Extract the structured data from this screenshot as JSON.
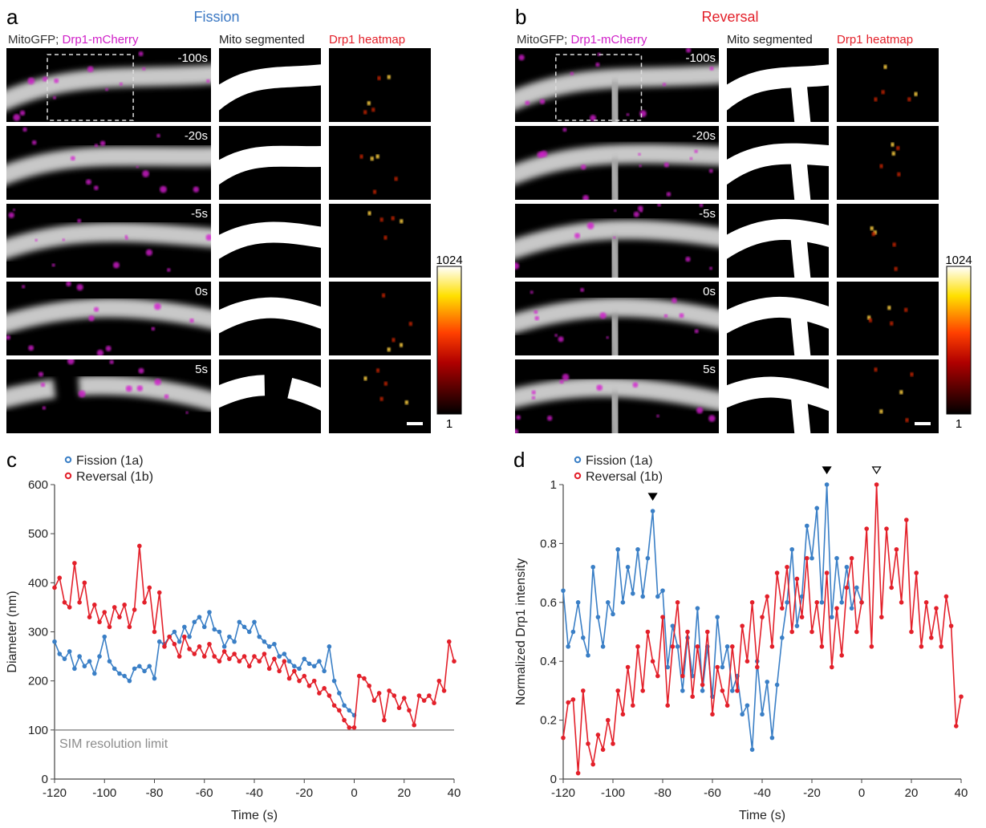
{
  "panel_a": {
    "letter": "a",
    "title": "Fission",
    "header_mito": "MitoGFP;",
    "header_drp1": "Drp1-mCherry",
    "header_segmented": "Mito segmented",
    "header_heatmap": "Drp1 heatmap",
    "timepoints": [
      "-100s",
      "-20s",
      "-5s",
      "0s",
      "5s"
    ],
    "colorbar_max": "1024",
    "colorbar_min": "1"
  },
  "panel_b": {
    "letter": "b",
    "title": "Reversal",
    "header_mito": "MitoGFP;",
    "header_drp1": "Drp1-mCherry",
    "header_segmented": "Mito segmented",
    "header_heatmap": "Drp1 heatmap",
    "timepoints": [
      "-100s",
      "-20s",
      "-5s",
      "0s",
      "5s"
    ],
    "colorbar_max": "1024",
    "colorbar_min": "1"
  },
  "chart_data": [
    {
      "type": "line",
      "panel_label": "c",
      "x_label": "Time (s)",
      "y_label": "Diameter (nm)",
      "xlim": [
        -120,
        40
      ],
      "xticks": [
        -120,
        -100,
        -80,
        -60,
        -40,
        -20,
        0,
        20,
        40
      ],
      "ylim": [
        0,
        600
      ],
      "yticks": [
        0,
        100,
        200,
        300,
        400,
        500,
        600
      ],
      "reference_line": {
        "value": 100,
        "label": "SIM resolution limit",
        "color": "#8c8c8c"
      },
      "series": [
        {
          "name": "Fission (1a)",
          "color": "#3a7fc6",
          "x": [
            -120,
            -118,
            -116,
            -114,
            -112,
            -110,
            -108,
            -106,
            -104,
            -102,
            -100,
            -98,
            -96,
            -94,
            -92,
            -90,
            -88,
            -86,
            -84,
            -82,
            -80,
            -78,
            -76,
            -74,
            -72,
            -70,
            -68,
            -66,
            -64,
            -62,
            -60,
            -58,
            -56,
            -54,
            -52,
            -50,
            -48,
            -46,
            -44,
            -42,
            -40,
            -38,
            -36,
            -34,
            -32,
            -30,
            -28,
            -26,
            -24,
            -22,
            -20,
            -18,
            -16,
            -14,
            -12,
            -10,
            -8,
            -6,
            -4,
            -2,
            0
          ],
          "values": [
            280,
            255,
            245,
            260,
            225,
            250,
            230,
            240,
            215,
            250,
            290,
            240,
            225,
            215,
            210,
            200,
            225,
            230,
            220,
            230,
            205,
            280,
            275,
            290,
            300,
            280,
            310,
            290,
            320,
            330,
            310,
            340,
            305,
            300,
            270,
            290,
            280,
            320,
            310,
            300,
            320,
            290,
            280,
            270,
            275,
            250,
            255,
            240,
            230,
            225,
            245,
            235,
            230,
            240,
            220,
            270,
            200,
            175,
            150,
            140,
            130
          ]
        },
        {
          "name": "Reversal (1b)",
          "color": "#e3202a",
          "x": [
            -120,
            -118,
            -116,
            -114,
            -112,
            -110,
            -108,
            -106,
            -104,
            -102,
            -100,
            -98,
            -96,
            -94,
            -92,
            -90,
            -88,
            -86,
            -84,
            -82,
            -80,
            -78,
            -76,
            -74,
            -72,
            -70,
            -68,
            -66,
            -64,
            -62,
            -60,
            -58,
            -56,
            -54,
            -52,
            -50,
            -48,
            -46,
            -44,
            -42,
            -40,
            -38,
            -36,
            -34,
            -32,
            -30,
            -28,
            -26,
            -24,
            -22,
            -20,
            -18,
            -16,
            -14,
            -12,
            -10,
            -8,
            -6,
            -4,
            -2,
            0,
            2,
            4,
            6,
            8,
            10,
            12,
            14,
            16,
            18,
            20,
            22,
            24,
            26,
            28,
            30,
            32,
            34,
            36,
            38,
            40
          ],
          "values": [
            390,
            410,
            360,
            350,
            440,
            360,
            400,
            330,
            355,
            320,
            340,
            310,
            350,
            330,
            355,
            310,
            345,
            475,
            360,
            390,
            300,
            380,
            270,
            290,
            275,
            250,
            290,
            265,
            255,
            270,
            250,
            275,
            250,
            240,
            260,
            245,
            255,
            240,
            250,
            230,
            250,
            240,
            255,
            225,
            245,
            220,
            240,
            205,
            220,
            200,
            210,
            190,
            200,
            175,
            185,
            170,
            150,
            140,
            120,
            105,
            105,
            210,
            205,
            190,
            160,
            175,
            120,
            180,
            170,
            145,
            165,
            140,
            110,
            170,
            160,
            170,
            155,
            200,
            180,
            280,
            240
          ]
        }
      ]
    },
    {
      "type": "line",
      "panel_label": "d",
      "x_label": "Time (s)",
      "y_label": "Normalized Drp1 intensity",
      "xlim": [
        -120,
        40
      ],
      "xticks": [
        -120,
        -100,
        -80,
        -60,
        -40,
        -20,
        0,
        20,
        40
      ],
      "ylim": [
        0,
        1
      ],
      "yticks": [
        0,
        0.2,
        0.4,
        0.6,
        0.8,
        1
      ],
      "markers": [
        {
          "series": 0,
          "index": 18,
          "filled": true
        },
        {
          "series": 0,
          "index": 53,
          "filled": true
        },
        {
          "series": 1,
          "index": 63,
          "filled": false
        }
      ],
      "series": [
        {
          "name": "Fission (1a)",
          "color": "#3a7fc6",
          "x": [
            -120,
            -118,
            -116,
            -114,
            -112,
            -110,
            -108,
            -106,
            -104,
            -102,
            -100,
            -98,
            -96,
            -94,
            -92,
            -90,
            -88,
            -86,
            -84,
            -82,
            -80,
            -78,
            -76,
            -74,
            -72,
            -70,
            -68,
            -66,
            -64,
            -62,
            -60,
            -58,
            -56,
            -54,
            -52,
            -50,
            -48,
            -46,
            -44,
            -42,
            -40,
            -38,
            -36,
            -34,
            -32,
            -30,
            -28,
            -26,
            -24,
            -22,
            -20,
            -18,
            -16,
            -14,
            -12,
            -10,
            -8,
            -6,
            -4,
            -2,
            0
          ],
          "values": [
            0.64,
            0.45,
            0.5,
            0.6,
            0.48,
            0.42,
            0.72,
            0.55,
            0.45,
            0.6,
            0.56,
            0.78,
            0.6,
            0.72,
            0.63,
            0.78,
            0.62,
            0.75,
            0.91,
            0.62,
            0.64,
            0.38,
            0.52,
            0.45,
            0.3,
            0.48,
            0.35,
            0.58,
            0.3,
            0.45,
            0.28,
            0.55,
            0.38,
            0.45,
            0.3,
            0.35,
            0.22,
            0.25,
            0.1,
            0.4,
            0.22,
            0.33,
            0.14,
            0.32,
            0.48,
            0.6,
            0.78,
            0.52,
            0.62,
            0.86,
            0.75,
            0.92,
            0.6,
            1.0,
            0.55,
            0.75,
            0.6,
            0.72,
            0.58,
            0.65,
            0.6
          ]
        },
        {
          "name": "Reversal (1b)",
          "color": "#e3202a",
          "x": [
            -120,
            -118,
            -116,
            -114,
            -112,
            -110,
            -108,
            -106,
            -104,
            -102,
            -100,
            -98,
            -96,
            -94,
            -92,
            -90,
            -88,
            -86,
            -84,
            -82,
            -80,
            -78,
            -76,
            -74,
            -72,
            -70,
            -68,
            -66,
            -64,
            -62,
            -60,
            -58,
            -56,
            -54,
            -52,
            -50,
            -48,
            -46,
            -44,
            -42,
            -40,
            -38,
            -36,
            -34,
            -32,
            -30,
            -28,
            -26,
            -24,
            -22,
            -20,
            -18,
            -16,
            -14,
            -12,
            -10,
            -8,
            -6,
            -4,
            -2,
            0,
            2,
            4,
            6,
            8,
            10,
            12,
            14,
            16,
            18,
            20,
            22,
            24,
            26,
            28,
            30,
            32,
            34,
            36,
            38,
            40
          ],
          "values": [
            0.14,
            0.26,
            0.27,
            0.02,
            0.3,
            0.12,
            0.05,
            0.15,
            0.1,
            0.2,
            0.12,
            0.3,
            0.22,
            0.38,
            0.25,
            0.45,
            0.3,
            0.5,
            0.4,
            0.35,
            0.55,
            0.25,
            0.45,
            0.6,
            0.35,
            0.5,
            0.28,
            0.45,
            0.32,
            0.5,
            0.22,
            0.38,
            0.3,
            0.25,
            0.45,
            0.3,
            0.52,
            0.4,
            0.6,
            0.38,
            0.55,
            0.62,
            0.45,
            0.7,
            0.58,
            0.72,
            0.5,
            0.68,
            0.55,
            0.75,
            0.5,
            0.6,
            0.45,
            0.7,
            0.38,
            0.58,
            0.42,
            0.65,
            0.75,
            0.5,
            0.6,
            0.85,
            0.45,
            1.0,
            0.55,
            0.85,
            0.65,
            0.78,
            0.6,
            0.88,
            0.5,
            0.7,
            0.45,
            0.6,
            0.48,
            0.58,
            0.45,
            0.62,
            0.52,
            0.18,
            0.28
          ]
        }
      ]
    }
  ]
}
